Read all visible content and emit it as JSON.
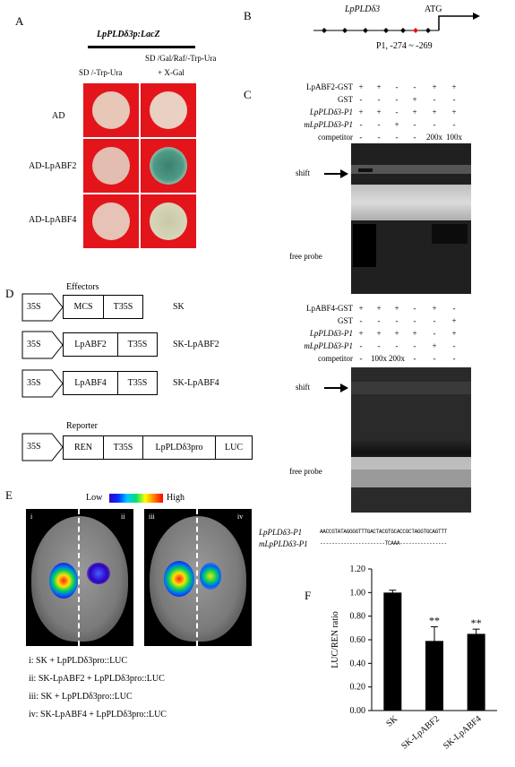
{
  "panel_a": {
    "letter": "A",
    "construct": "LpPLDδ3p:LacZ",
    "col1": "SD /-Trp-Ura",
    "col2_line1": "SD /Gal/Raf/-Trp-Ura",
    "col2_line2": "+ X-Gal",
    "rows": [
      "AD",
      "AD-LpABF2",
      "AD-LpABF4"
    ]
  },
  "panel_b": {
    "letter": "B",
    "gene": "LpPLDδ3",
    "atg": "ATG",
    "site": "P1, -274 ~ -269"
  },
  "panel_c": {
    "letter": "C",
    "gel1": {
      "rows": [
        {
          "label": "LpABF2-GST",
          "italic": false,
          "vals": [
            "+",
            "+",
            "-",
            "-",
            "+",
            "+"
          ]
        },
        {
          "label": "GST",
          "italic": false,
          "vals": [
            "-",
            "-",
            "-",
            "+",
            "-",
            "-"
          ]
        },
        {
          "label": "LpPLDδ3-P1",
          "italic": true,
          "vals": [
            "+",
            "+",
            "-",
            "+",
            "+",
            "+"
          ]
        },
        {
          "label": "mLpPLDδ3-P1",
          "italic": true,
          "vals": [
            "-",
            "-",
            "+",
            "-",
            "-",
            "-"
          ]
        },
        {
          "label": "competitor",
          "italic": false,
          "vals": [
            "-",
            "-",
            "-",
            "-",
            "200x",
            "100x"
          ]
        }
      ],
      "shift": "shift",
      "free": "free probe"
    },
    "gel2": {
      "rows": [
        {
          "label": "LpABF4-GST",
          "italic": false,
          "vals": [
            "+",
            "+",
            "+",
            "-",
            "+",
            "-"
          ]
        },
        {
          "label": "GST",
          "italic": false,
          "vals": [
            "-",
            "-",
            "-",
            "-",
            "-",
            "+"
          ]
        },
        {
          "label": "LpPLDδ3-P1",
          "italic": true,
          "vals": [
            "+",
            "+",
            "+",
            "+",
            "-",
            "+"
          ]
        },
        {
          "label": "mLpPLDδ3-P1",
          "italic": true,
          "vals": [
            "-",
            "-",
            "-",
            "-",
            "+",
            "-"
          ]
        },
        {
          "label": "competitor",
          "italic": false,
          "vals": [
            "-",
            "100x",
            "200x",
            "-",
            "-",
            "-"
          ]
        }
      ],
      "shift": "shift",
      "free": "free probe"
    },
    "seq": {
      "wt_label": "LpPLDδ3-P1",
      "wt_seq": "AACCGTATAGGGGTTTGACTACGTGCACCGCTAGGTGCAGTTT",
      "mut_label": "mLpPLDδ3-P1",
      "mut_seq": "----------------------TCAAA----------------"
    }
  },
  "panel_d": {
    "letter": "D",
    "effectors": "Effectors",
    "reporter": "Reporter",
    "promoter": "35S",
    "constructs": [
      {
        "parts": [
          "MCS",
          "T35S"
        ],
        "name": "SK"
      },
      {
        "parts": [
          "LpABF2",
          "T35S"
        ],
        "name": "SK-LpABF2"
      },
      {
        "parts": [
          "LpABF4",
          "T35S"
        ],
        "name": "SK-LpABF4"
      }
    ],
    "reporter_parts": [
      "REN",
      "T35S",
      "LpPLDδ3pro",
      "LUC"
    ]
  },
  "panel_e": {
    "letter": "E",
    "low": "Low",
    "high": "High",
    "roman": [
      "i",
      "ii",
      "iii",
      "iv"
    ],
    "legend": [
      "i: SK + LpPLDδ3pro::LUC",
      "ii: SK-LpABF2 + LpPLDδ3pro::LUC",
      "iii: SK + LpPLDδ3pro::LUC",
      "iv: SK-LpABF4 + LpPLDδ3pro::LUC"
    ]
  },
  "chart_data": {
    "type": "bar",
    "letter": "F",
    "categories": [
      "SK",
      "SK-LpABF2",
      "SK-LpABF4"
    ],
    "values": [
      1.0,
      0.59,
      0.65
    ],
    "errors": [
      0.02,
      0.12,
      0.04
    ],
    "significance": [
      "",
      "**",
      "**"
    ],
    "ylabel": "LUC/REN ratio",
    "ylim": [
      0,
      1.2
    ],
    "yticks": [
      "0.00",
      "0.20",
      "0.40",
      "0.60",
      "0.80",
      "1.00",
      "1.20"
    ]
  }
}
